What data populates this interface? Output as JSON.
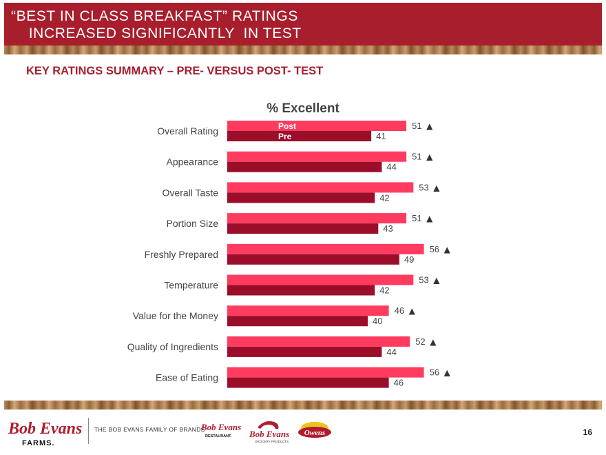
{
  "header": {
    "title": "“BEST IN CLASS BREAKFAST” RATINGS\n    INCREASED SIGNIFICANTLY  IN TEST"
  },
  "subtitle": "KEY RATINGS SUMMARY – PRE- VERSUS POST- TEST",
  "colors": {
    "post": "#ff3c5f",
    "pre": "#9b0e2a",
    "header": "#a81e2d"
  },
  "chart_data": {
    "type": "bar",
    "orientation": "horizontal",
    "title": "% Excellent",
    "categories": [
      "Overall Rating",
      "Appearance",
      "Overall Taste",
      "Portion Size",
      "Freshly Prepared",
      "Temperature",
      "Value for the Money",
      "Quality of Ingredients",
      "Ease of Eating"
    ],
    "series": [
      {
        "name": "Post",
        "values": [
          51,
          51,
          53,
          51,
          56,
          53,
          46,
          52,
          56
        ],
        "color": "#ff3c5f"
      },
      {
        "name": "Pre",
        "values": [
          41,
          44,
          42,
          43,
          49,
          42,
          40,
          44,
          46
        ],
        "color": "#9b0e2a"
      }
    ],
    "significance_marker": "▲",
    "significant_series": "Post",
    "legend": "inside-first-bars",
    "grid": false
  },
  "footer": {
    "brand_main": "Bob Evans",
    "brand_sub": "FARMS.",
    "family_text": "THE BOB EVANS FAMILY OF BRANDS",
    "brand_restaurant": "Bob Evans",
    "brand_restaurant_sub": "RESTAURANT.",
    "brand_grocery": "Bob Evans",
    "brand_grocery_sub": "GROCERY PRODUCTS",
    "brand_owens": "Owens",
    "page_number": "16"
  }
}
